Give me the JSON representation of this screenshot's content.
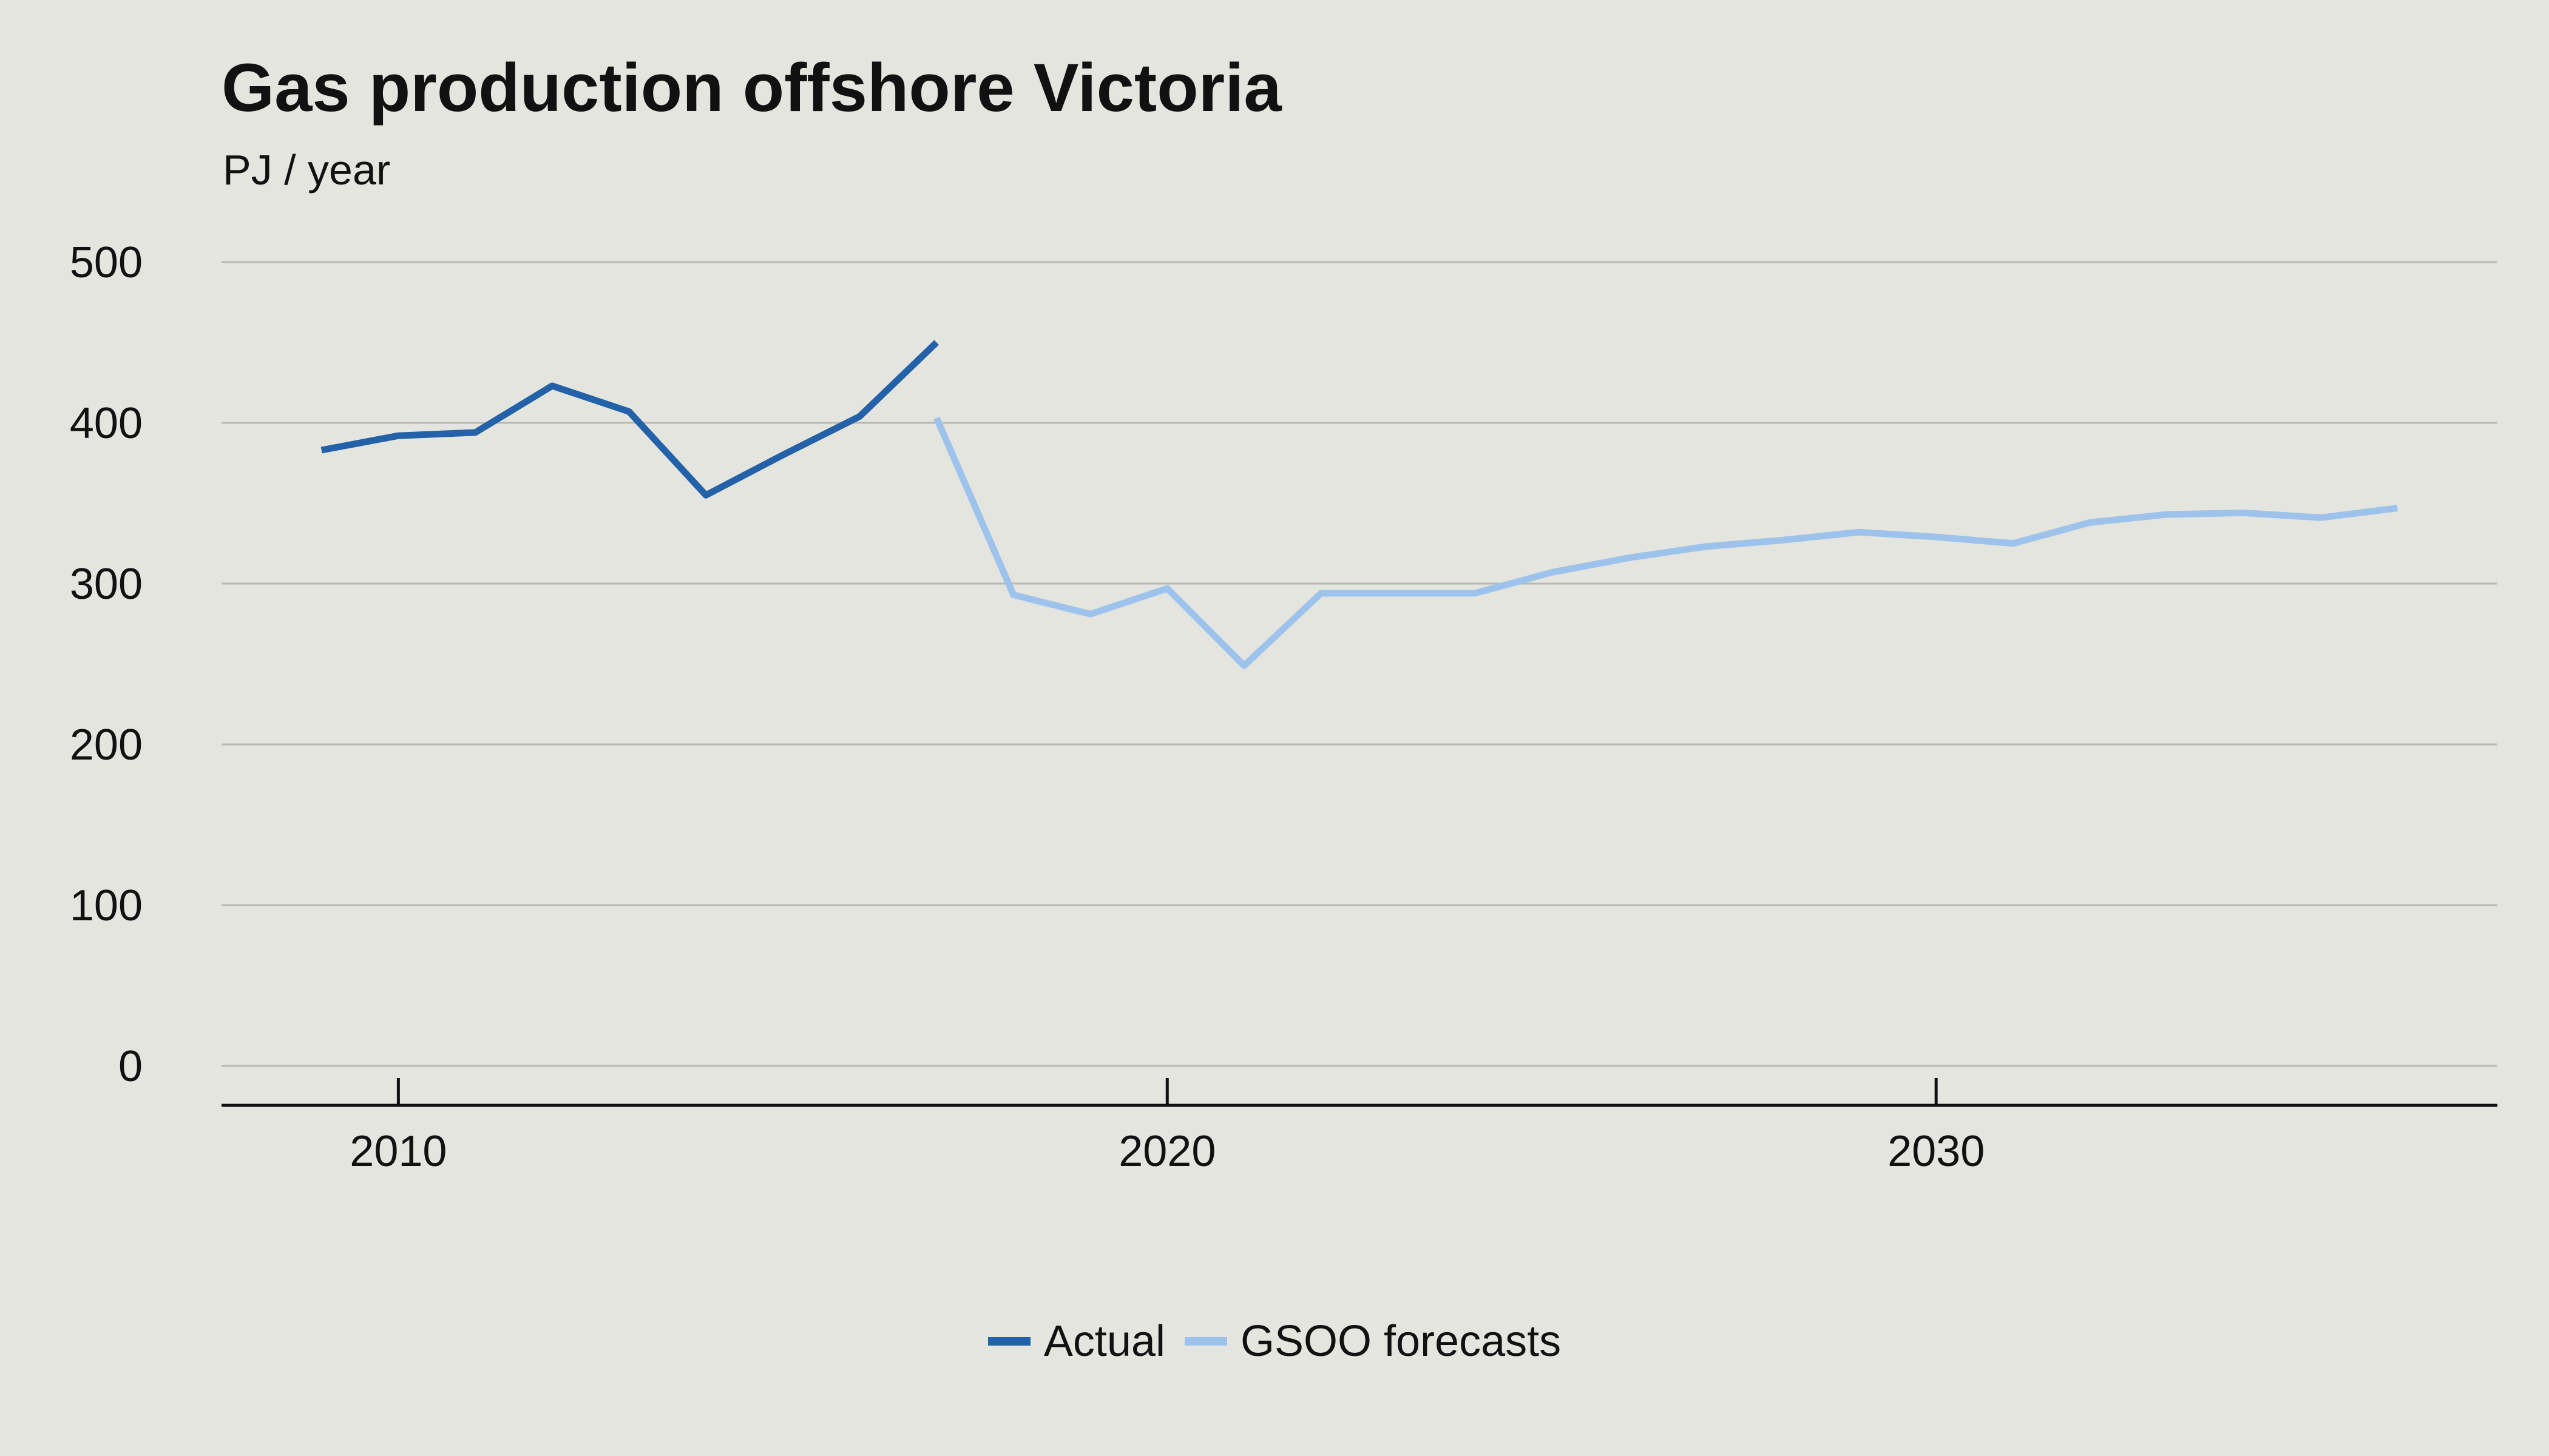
{
  "chart_data": {
    "type": "line",
    "title": "Gas production offshore Victoria",
    "subtitle": "PJ / year",
    "xlabel": "",
    "ylabel": "",
    "xlim": [
      2007.7,
      2037.3
    ],
    "ylim": [
      0,
      500
    ],
    "x_ticks": [
      2010,
      2020,
      2030
    ],
    "y_ticks": [
      0,
      100,
      200,
      300,
      400,
      500
    ],
    "grid": true,
    "legend_position": "bottom-center",
    "series": [
      {
        "name": "Actual",
        "color": "#2361a8",
        "points": [
          [
            2009,
            383
          ],
          [
            2010,
            392
          ],
          [
            2011,
            394
          ],
          [
            2012,
            423
          ],
          [
            2013,
            407
          ],
          [
            2014,
            355
          ],
          [
            2015,
            380
          ],
          [
            2016,
            404
          ],
          [
            2017,
            450
          ]
        ]
      },
      {
        "name": "GSOO forecasts",
        "color": "#9dc3ec",
        "points": [
          [
            2017,
            403
          ],
          [
            2018,
            293
          ],
          [
            2019,
            281
          ],
          [
            2020,
            297
          ],
          [
            2021,
            249
          ],
          [
            2022,
            294
          ],
          [
            2023,
            294
          ],
          [
            2024,
            294
          ],
          [
            2025,
            307
          ],
          [
            2026,
            316
          ],
          [
            2027,
            323
          ],
          [
            2028,
            327
          ],
          [
            2029,
            332
          ],
          [
            2030,
            329
          ],
          [
            2031,
            325
          ],
          [
            2032,
            338
          ],
          [
            2033,
            343
          ],
          [
            2034,
            344
          ],
          [
            2035,
            341
          ],
          [
            2036,
            347
          ]
        ]
      }
    ]
  }
}
